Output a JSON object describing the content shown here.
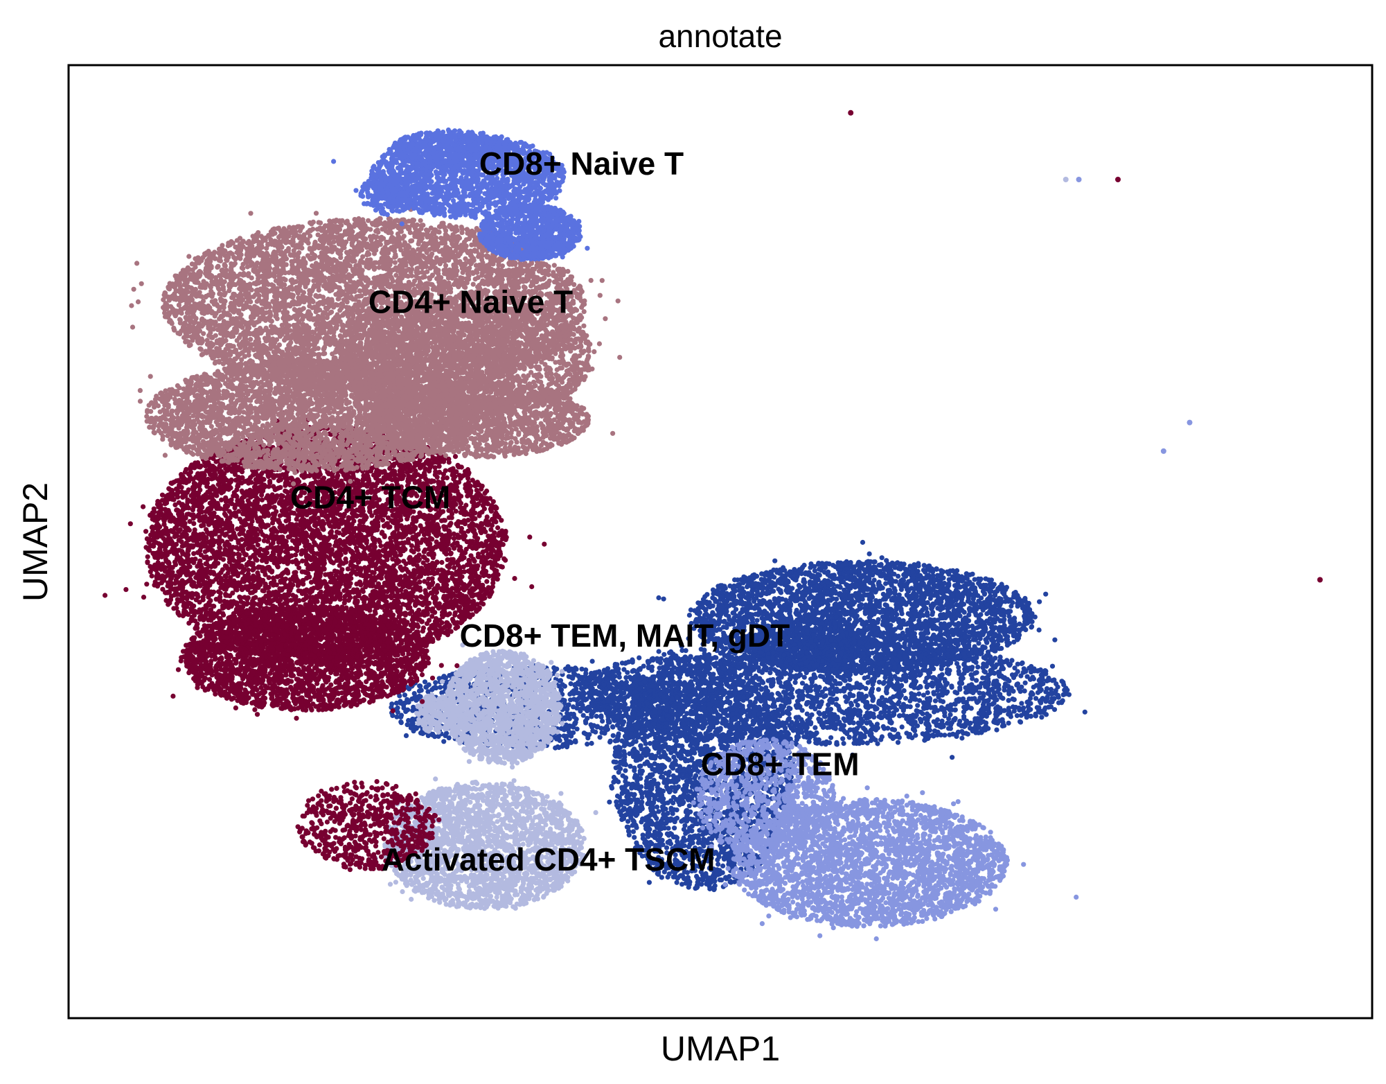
{
  "chart_data": {
    "type": "scatter",
    "title": "annotate",
    "xlabel": "UMAP1",
    "ylabel": "UMAP2",
    "xlim": [
      0,
      100
    ],
    "ylim": [
      0,
      100
    ],
    "grid": false,
    "ticks": false,
    "legend": "on data",
    "clusters": [
      {
        "name": "CD8+ Naive T",
        "color": "#5a72e0",
        "label_x": 31.5,
        "label_y": 88.5
      },
      {
        "name": "CD4+ Naive T",
        "color": "#a87480",
        "label_x": 23,
        "label_y": 74
      },
      {
        "name": "CD4+ TCM",
        "color": "#770031",
        "label_x": 17,
        "label_y": 53.5
      },
      {
        "name": "CD8+ TEM, MAIT, gDT",
        "color": "#b3bae0",
        "label_x": 30,
        "label_y": 39
      },
      {
        "name": "CD8+ TEM",
        "color": "#8796e0",
        "label_x": 48.5,
        "label_y": 25.5
      },
      {
        "name": "Activated CD4+ TSCM",
        "color": "#2343a0",
        "label_x": 24,
        "label_y": 15.5
      }
    ],
    "outliers": [
      {
        "x": 60,
        "y": 95,
        "color": "#770031"
      },
      {
        "x": 80.5,
        "y": 88,
        "color": "#770031"
      },
      {
        "x": 76.5,
        "y": 88,
        "color": "#b3bae0"
      },
      {
        "x": 77.5,
        "y": 88,
        "color": "#8796e0"
      },
      {
        "x": 86,
        "y": 62.5,
        "color": "#8796e0"
      },
      {
        "x": 84,
        "y": 59.5,
        "color": "#8796e0"
      },
      {
        "x": 96,
        "y": 46,
        "color": "#770031"
      }
    ]
  }
}
